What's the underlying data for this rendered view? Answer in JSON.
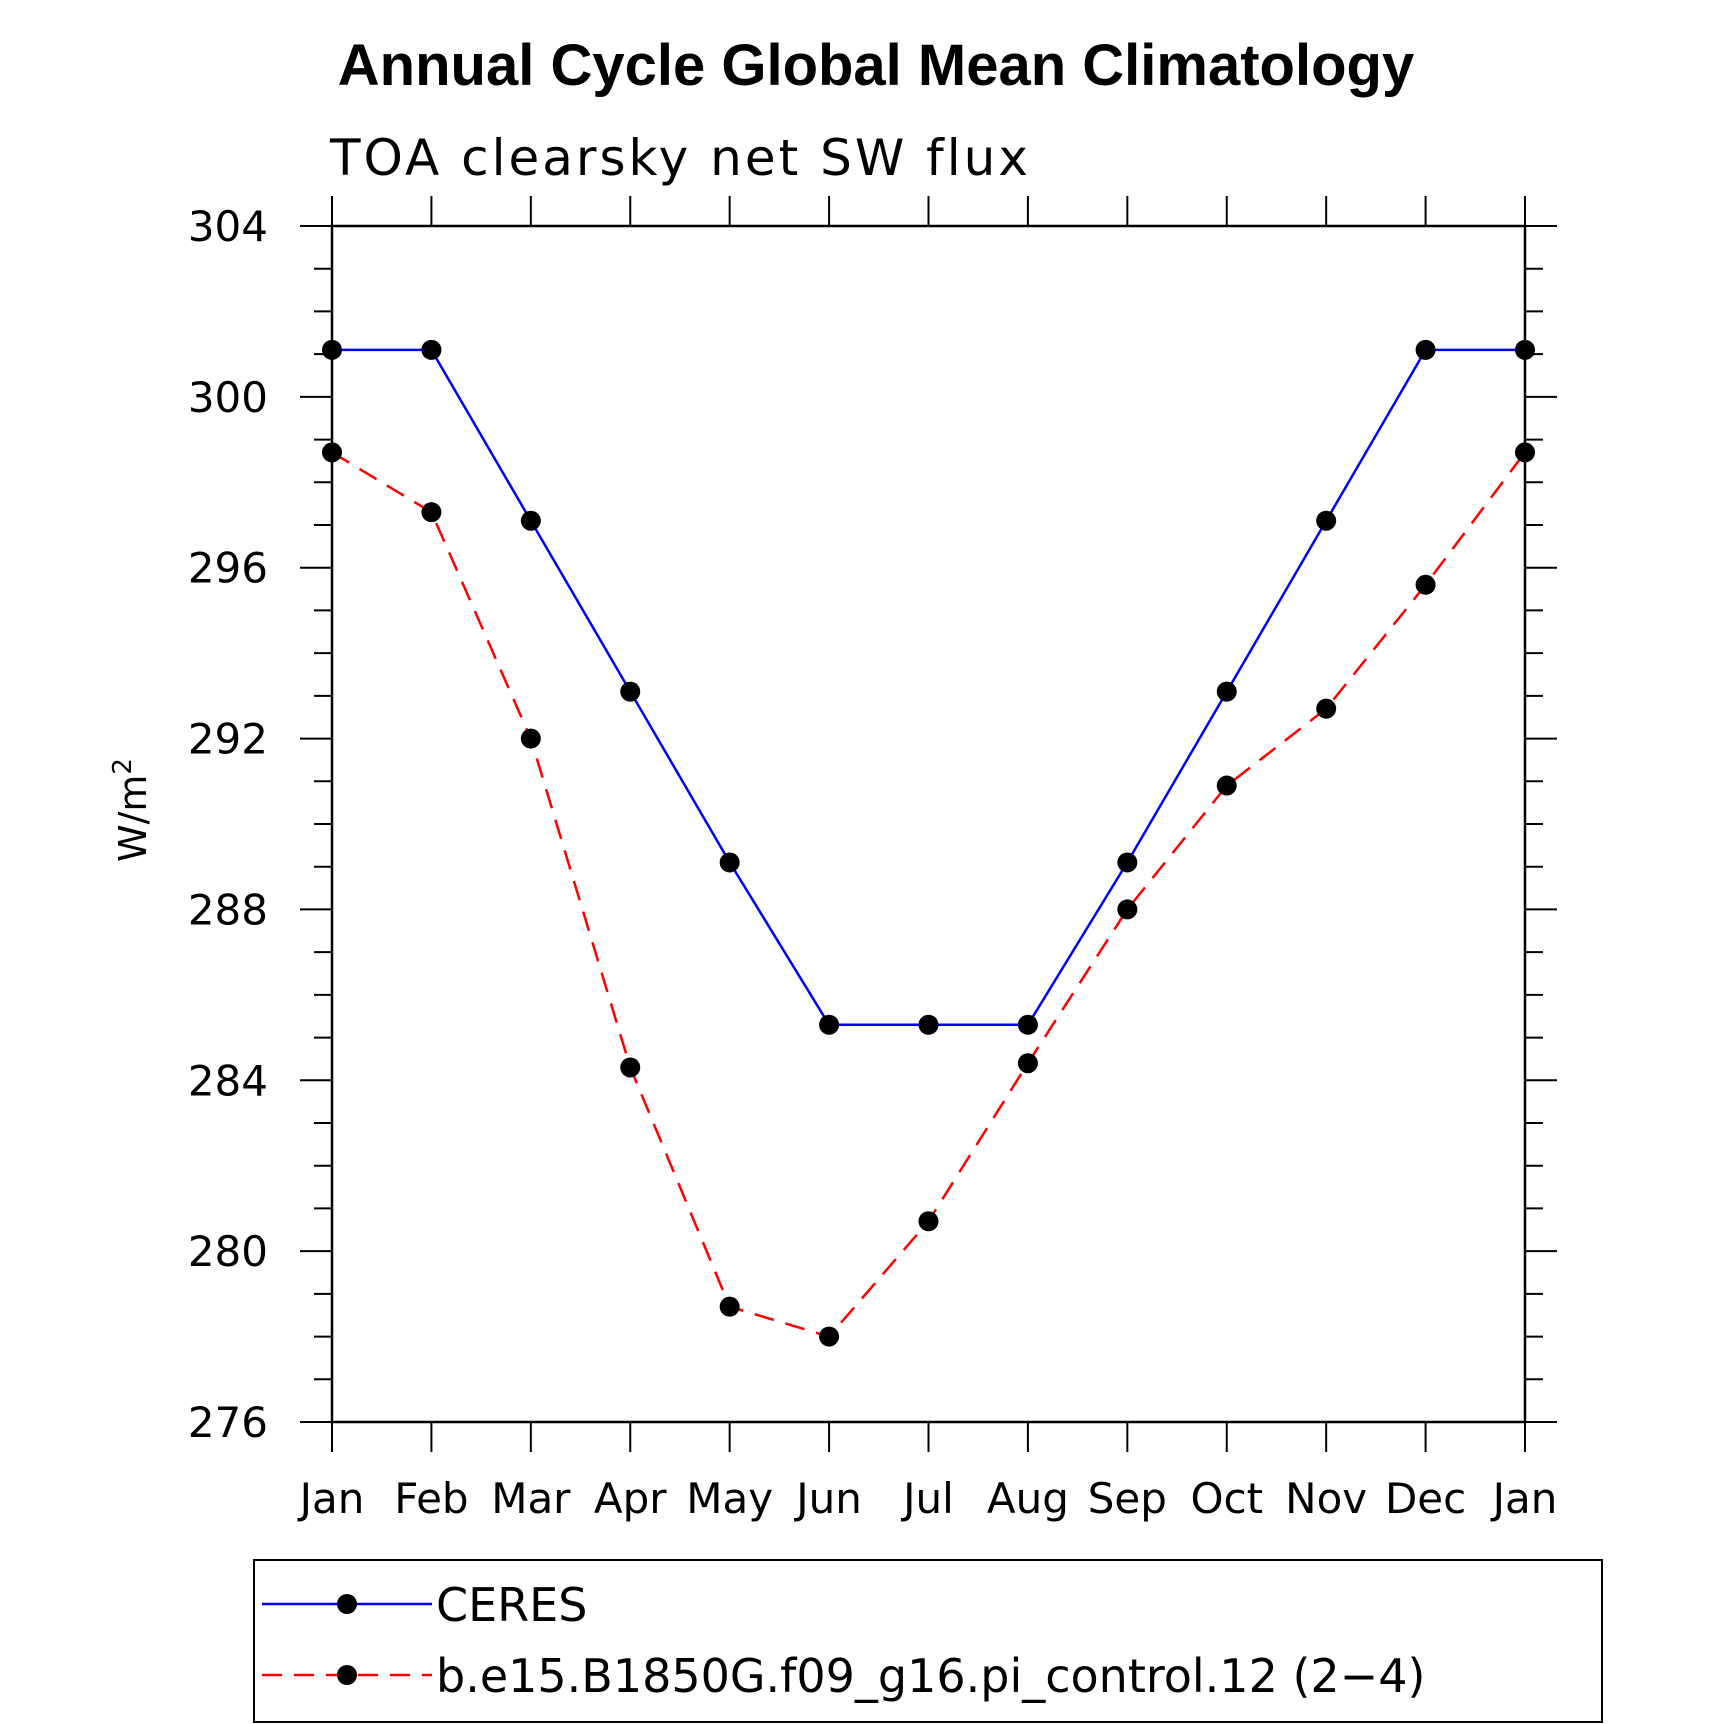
{
  "chart_data": {
    "type": "line",
    "title": "Annual Cycle Global Mean Climatology",
    "subtitle": "TOA clearsky net SW flux",
    "ylabel": "W/m",
    "ylabel_superscript": "2",
    "categories": [
      "Jan",
      "Feb",
      "Mar",
      "Apr",
      "May",
      "Jun",
      "Jul",
      "Aug",
      "Sep",
      "Oct",
      "Nov",
      "Dec",
      "Jan"
    ],
    "ylim": [
      276,
      304
    ],
    "yticks": [
      276,
      280,
      284,
      288,
      292,
      296,
      300,
      304
    ],
    "grid": false,
    "legend_position": "bottom",
    "series": [
      {
        "name": "CERES",
        "color": "#0000ff",
        "dash": "solid",
        "marker": "circle",
        "values": [
          301.1,
          301.1,
          297.1,
          293.1,
          289.1,
          285.3,
          285.3,
          285.3,
          289.1,
          293.1,
          297.1,
          301.1,
          301.1
        ]
      },
      {
        "name": "b.e15.B1850G.f09_g16.pi_control.12 (2−4)",
        "color": "#ff0000",
        "dash": "dashed",
        "marker": "circle",
        "values": [
          298.7,
          297.3,
          292.0,
          284.3,
          278.7,
          278.0,
          280.7,
          284.4,
          288.0,
          290.9,
          292.7,
          295.6,
          298.7
        ]
      }
    ]
  }
}
